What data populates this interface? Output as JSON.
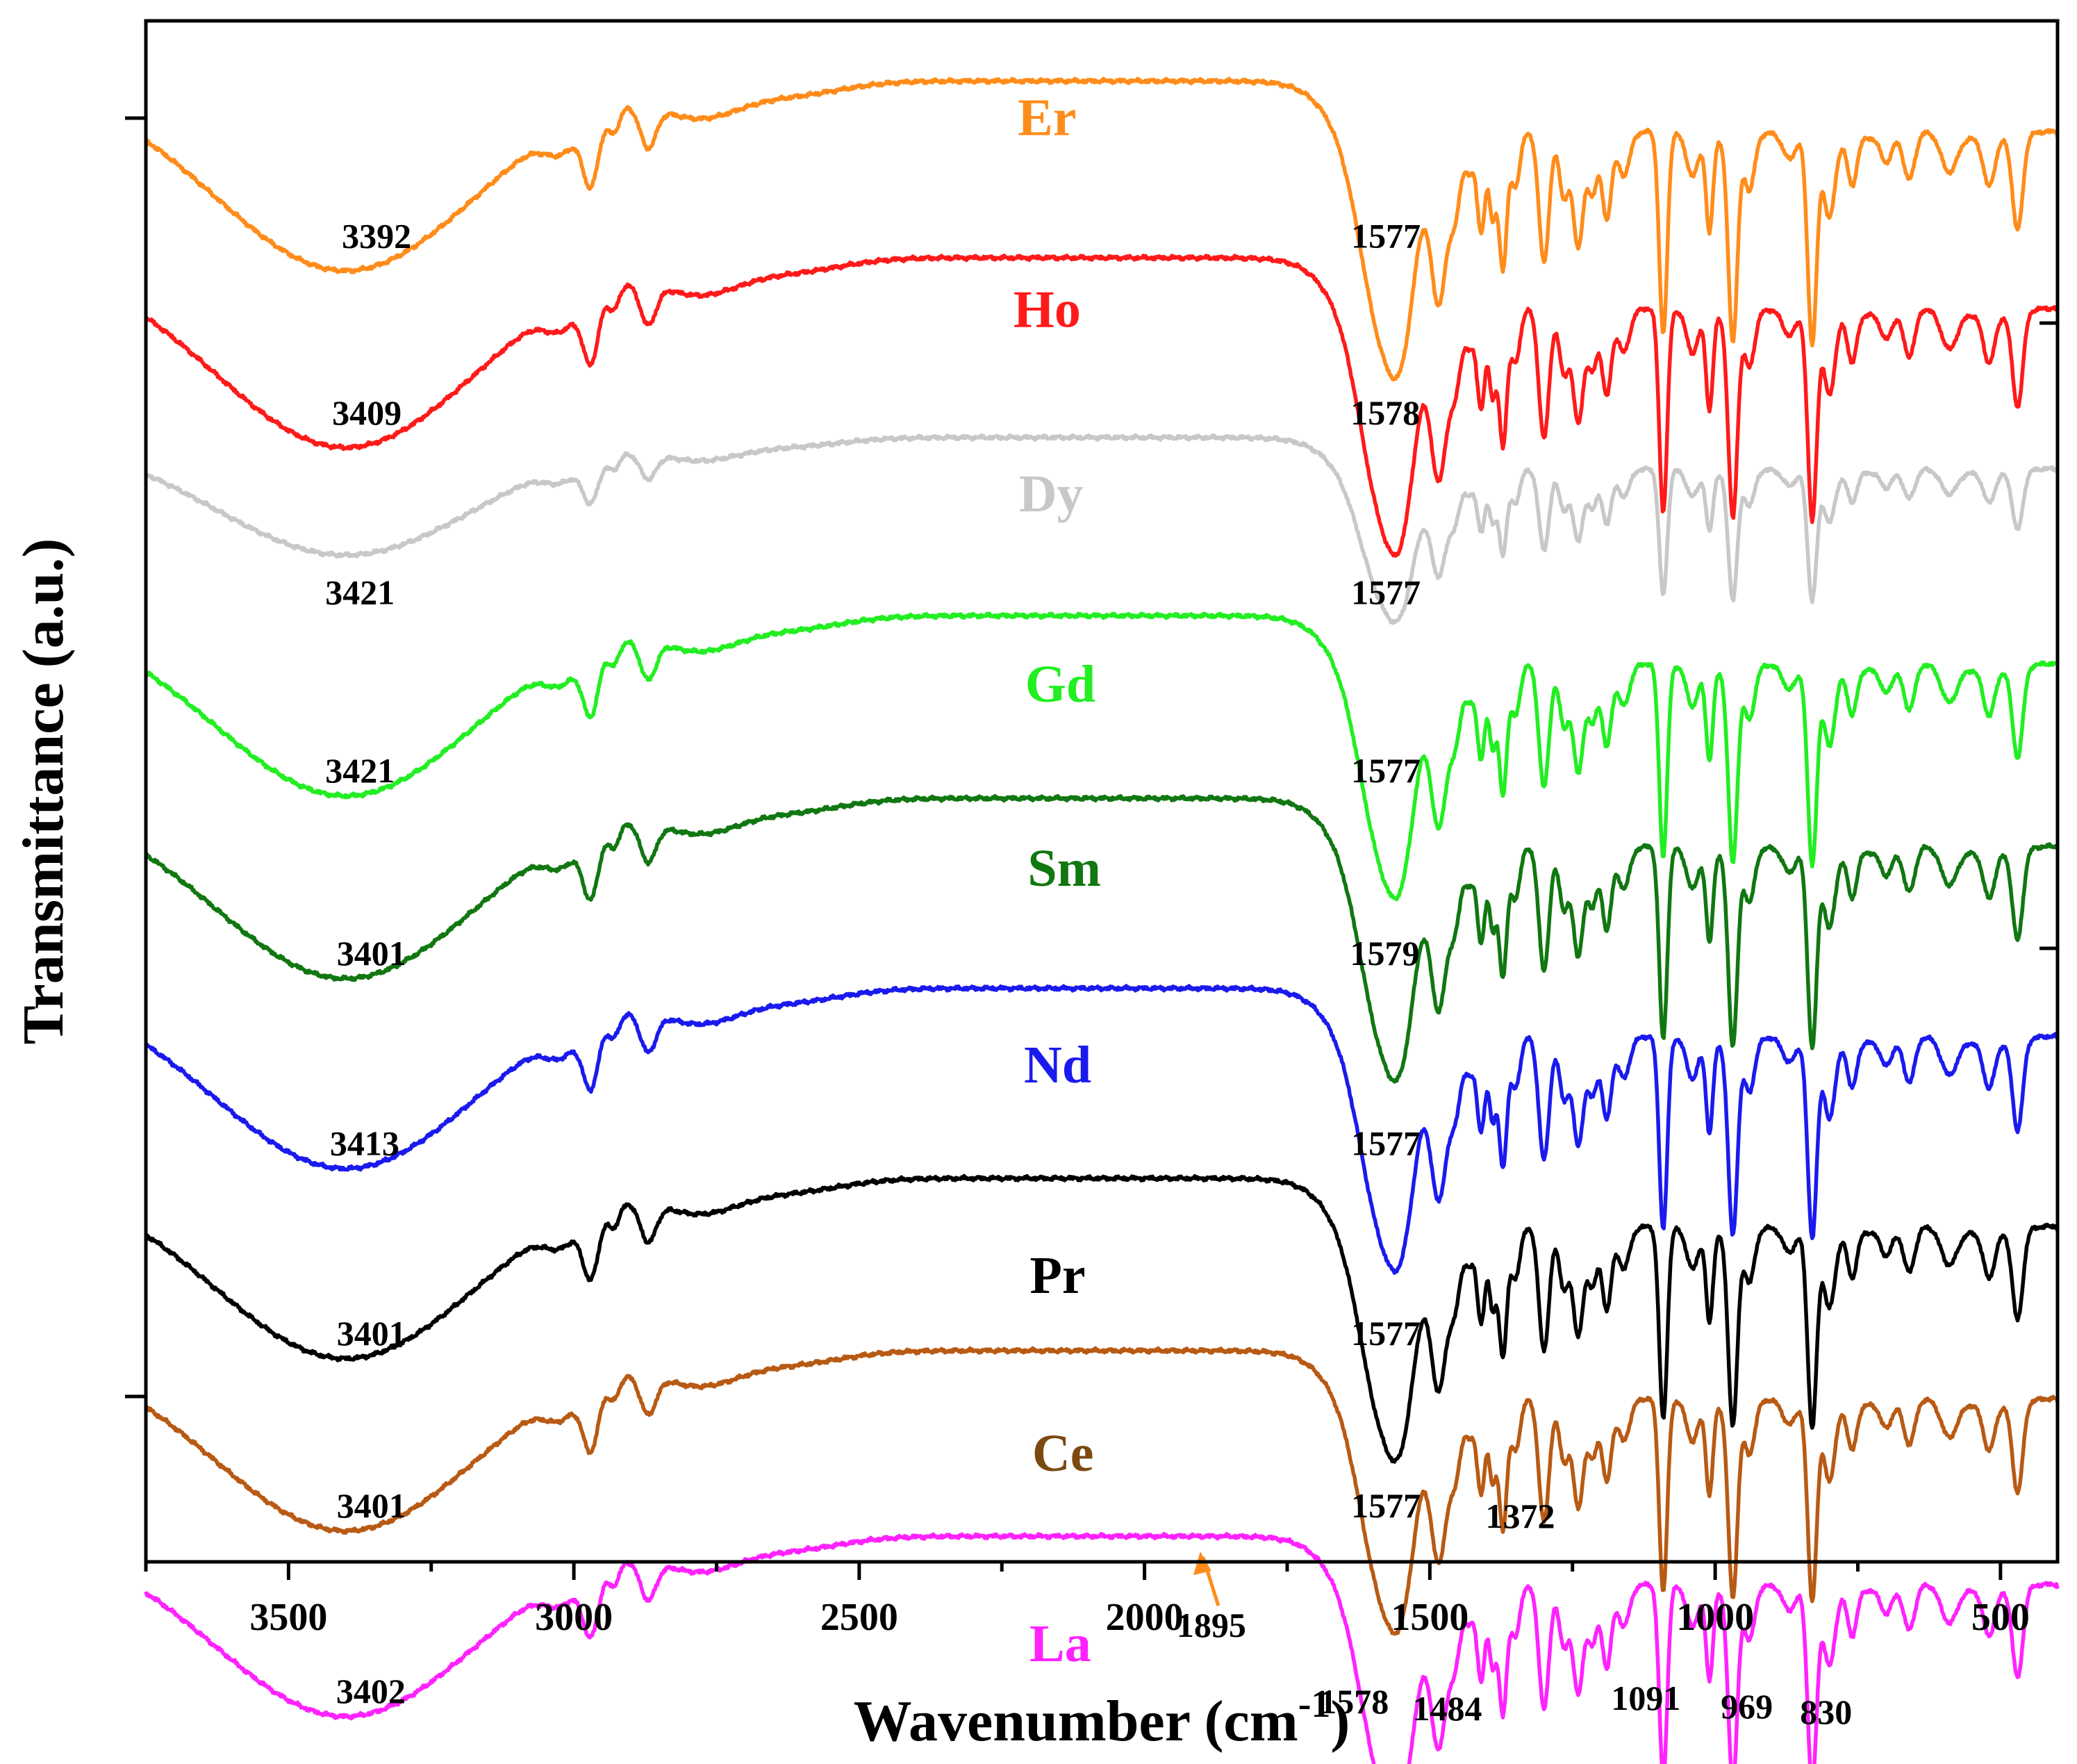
{
  "chart_data": {
    "type": "line",
    "xlabel": "Wavenumber (cm",
    "xlabel_sup": "-1",
    "xlabel_close": ")",
    "ylabel": "Transmittance (a.u.)",
    "xlim": [
      3750,
      400
    ],
    "x_reversed": true,
    "x_ticks": [
      3500,
      3000,
      2500,
      2000,
      1500,
      1000,
      500
    ],
    "y_ticks": "none",
    "grid": false,
    "legend": "inline labels",
    "peaks": [
      3400,
      2970,
      2870,
      1578,
      1484,
      1430,
      1372,
      1300,
      1240,
      1190,
      1091,
      1010,
      969,
      830,
      760,
      660,
      520,
      470
    ],
    "series": [
      {
        "name": "Er",
        "color": "#ff8c1a",
        "annotations": [
          {
            "x": 3392,
            "label": "3392"
          },
          {
            "x": 1577,
            "label": "1577"
          }
        ]
      },
      {
        "name": "Ho",
        "color": "#ff1a1a",
        "annotations": [
          {
            "x": 3409,
            "label": "3409"
          },
          {
            "x": 1578,
            "label": "1578"
          }
        ]
      },
      {
        "name": "Dy",
        "color": "#c8c8c8",
        "annotations": [
          {
            "x": 3421,
            "label": "3421"
          },
          {
            "x": 1577,
            "label": "1577"
          }
        ]
      },
      {
        "name": "Gd",
        "color": "#22ee22",
        "annotations": [
          {
            "x": 3421,
            "label": "3421"
          },
          {
            "x": 1577,
            "label": "1577"
          }
        ]
      },
      {
        "name": "Sm",
        "color": "#117711",
        "annotations": [
          {
            "x": 3401,
            "label": "3401"
          },
          {
            "x": 1579,
            "label": "1579"
          }
        ]
      },
      {
        "name": "Nd",
        "color": "#1a1aee",
        "annotations": [
          {
            "x": 3413,
            "label": "3413"
          },
          {
            "x": 1577,
            "label": "1577"
          }
        ]
      },
      {
        "name": "Pr",
        "color": "#000000",
        "annotations": [
          {
            "x": 3401,
            "label": "3401"
          },
          {
            "x": 1577,
            "label": "1577"
          }
        ]
      },
      {
        "name": "Ce",
        "color": "#b85a14",
        "label_color": "#7a4a10",
        "annotations": [
          {
            "x": 3401,
            "label": "3401"
          },
          {
            "x": 1577,
            "label": "1577"
          },
          {
            "x": 1372,
            "label": "1372"
          }
        ]
      },
      {
        "name": "La",
        "color": "#ff22ff",
        "annotations": [
          {
            "x": 3402,
            "label": "3402"
          },
          {
            "x": 1895,
            "label": "1895"
          },
          {
            "x": 1578,
            "label": "1578"
          },
          {
            "x": 1484,
            "label": "1484"
          },
          {
            "x": 1091,
            "label": "1091"
          },
          {
            "x": 969,
            "label": "969"
          },
          {
            "x": 830,
            "label": "830"
          }
        ]
      }
    ]
  }
}
